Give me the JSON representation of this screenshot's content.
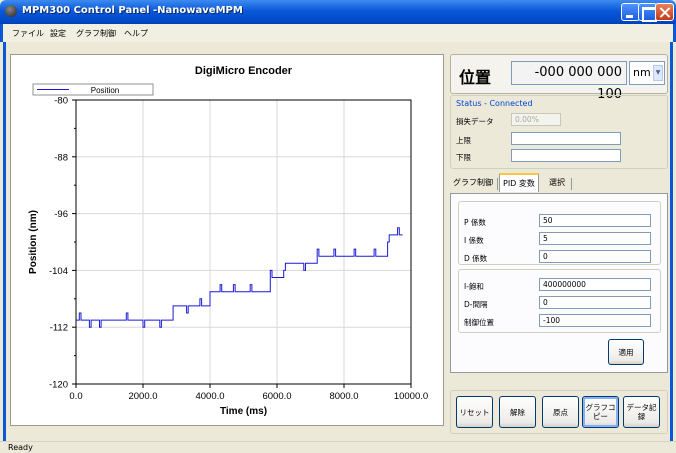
{
  "window": {
    "title": "MPM300 Control Panel -NanowaveMPM"
  },
  "menu": [
    "ファイル",
    "設定",
    "グラフ制御",
    "ヘルプ"
  ],
  "position": {
    "label": "位置",
    "value": "-000 000 000 100",
    "unit": "nm"
  },
  "status": {
    "title": "Status - Connected",
    "lost_label": "損失データ",
    "lost_value": "0.00%",
    "upper_label": "上限",
    "upper_value": "",
    "lower_label": "下限",
    "lower_value": ""
  },
  "tabs": [
    "グラフ制御",
    "PID 変数",
    "選択"
  ],
  "pid": {
    "p_label": "P 係数",
    "p_value": "50",
    "i_label": "I 係数",
    "i_value": "5",
    "d_label": "D 係数",
    "d_value": "0",
    "isat_label": "I-飽和",
    "isat_value": "400000000",
    "dint_label": "D-間隔",
    "dint_value": "0",
    "ctrl_label": "制御位置",
    "ctrl_value": "-100",
    "apply_label": "適用"
  },
  "buttons": {
    "reset": "リセット",
    "release": "解除",
    "origin": "原点",
    "graph_copy": "グラフコピー",
    "data_record": "データ記録"
  },
  "statusbar": "Ready",
  "colors": {
    "series": "#1a1ad6",
    "accent": "#0046d5"
  },
  "chart_data": {
    "type": "line",
    "title": "DigiMicro Encoder",
    "xlabel": "Time (ms)",
    "ylabel": "Position (nm)",
    "xlim": [
      0,
      10000
    ],
    "ylim": [
      -120,
      -80
    ],
    "xticks": [
      "0.0",
      "2000.0",
      "4000.0",
      "6000.0",
      "8000.0",
      "10000.0"
    ],
    "yticks": [
      "-80",
      "-88",
      "-96",
      "-104",
      "-112",
      "-120"
    ],
    "grid": true,
    "legend_position": "top-left",
    "series": [
      {
        "name": "Position",
        "x": [
          0,
          100,
          100,
          150,
          150,
          400,
          400,
          450,
          450,
          700,
          700,
          750,
          750,
          1500,
          1500,
          1550,
          1550,
          2000,
          2000,
          2050,
          2050,
          2500,
          2500,
          2550,
          2550,
          2900,
          2900,
          3300,
          3300,
          3350,
          3350,
          3700,
          3700,
          3750,
          3750,
          4000,
          4000,
          4300,
          4300,
          4350,
          4350,
          4700,
          4700,
          4750,
          4750,
          5200,
          5200,
          5250,
          5250,
          5800,
          5800,
          5850,
          5850,
          6200,
          6200,
          6250,
          6250,
          6800,
          6800,
          6850,
          6850,
          7200,
          7200,
          7250,
          7250,
          7700,
          7700,
          7750,
          7750,
          8300,
          8300,
          8350,
          8350,
          8900,
          8900,
          8950,
          8950,
          9300,
          9300,
          9350,
          9350,
          9600,
          9600,
          9650,
          9650,
          9750
        ],
        "y": [
          -111,
          -111,
          -110,
          -110,
          -111,
          -111,
          -112,
          -112,
          -111,
          -111,
          -112,
          -112,
          -111,
          -111,
          -110,
          -110,
          -111,
          -111,
          -112,
          -112,
          -111,
          -111,
          -112,
          -112,
          -111,
          -111,
          -109,
          -109,
          -110,
          -110,
          -109,
          -109,
          -108,
          -108,
          -109,
          -109,
          -107,
          -107,
          -106,
          -106,
          -107,
          -107,
          -106,
          -106,
          -107,
          -107,
          -106,
          -106,
          -107,
          -107,
          -104,
          -104,
          -105,
          -105,
          -104,
          -104,
          -103,
          -103,
          -104,
          -104,
          -103,
          -103,
          -101,
          -101,
          -102,
          -102,
          -101,
          -101,
          -102,
          -102,
          -101,
          -101,
          -102,
          -102,
          -101,
          -101,
          -102,
          -102,
          -100,
          -100,
          -99,
          -99,
          -98,
          -98,
          -99,
          -99
        ]
      }
    ]
  }
}
